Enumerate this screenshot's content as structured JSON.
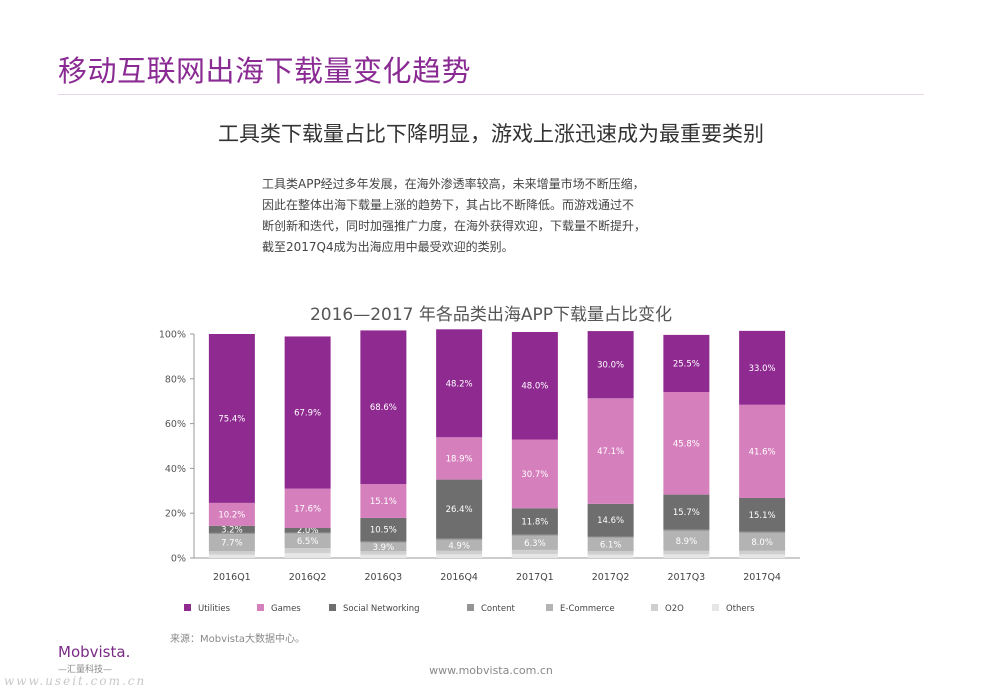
{
  "page": {
    "title": "移动互联网出海下载量变化趋势",
    "subtitle": "工具类下载量占比下降明显，游戏上涨迅速成为最重要类别",
    "description_lines": [
      "工具类APP经过多年发展，在海外渗透率较高，未来增量市场不断压缩，",
      "因此在整体出海下载量上涨的趋势下，其占比不断降低。而游戏通过不",
      "断创新和迭代，同时加强推广力度，在海外获得欢迎，下载量不断提升，",
      "截至2017Q4成为出海应用中最受欢迎的类别。"
    ],
    "source": "来源：Mobvista大数据中心。",
    "footer_url": "www.mobvista.com.cn",
    "logo": "Mobvista.",
    "logo_sub": "—汇量科技—",
    "watermark": "www.useit.com.cn"
  },
  "chart_data": {
    "type": "bar",
    "stacked": true,
    "title": "2016—2017 年各品类出海APP下载量占比变化",
    "categories": [
      "2016Q1",
      "2016Q2",
      "2016Q3",
      "2016Q4",
      "2017Q1",
      "2017Q2",
      "2017Q3",
      "2017Q4"
    ],
    "ylim": [
      0,
      100
    ],
    "yticks": [
      "0%",
      "20%",
      "40%",
      "60%",
      "80%",
      "100%"
    ],
    "legend_position": "bottom",
    "series": [
      {
        "name": "Others",
        "color": "#e6e6e6",
        "values": [
          1.5,
          2.2,
          1.5,
          1.6,
          1.8,
          1.5,
          1.6,
          1.6
        ]
      },
      {
        "name": "O2O",
        "color": "#cfcfcf",
        "values": [
          1.5,
          2.2,
          1.5,
          1.6,
          1.8,
          1.5,
          1.6,
          1.6
        ]
      },
      {
        "name": "E-Commerce",
        "color": "#b3b3b3",
        "values": [
          7.7,
          6.5,
          3.9,
          4.9,
          6.3,
          6.1,
          8.9,
          8.0
        ]
      },
      {
        "name": "Content",
        "color": "#949494",
        "values": [
          0.5,
          0.5,
          0.5,
          0.5,
          0.5,
          0.5,
          0.5,
          0.5
        ]
      },
      {
        "name": "Social Networking",
        "color": "#6e6e6e",
        "values": [
          3.2,
          2.0,
          10.5,
          26.4,
          11.8,
          14.6,
          15.7,
          15.1
        ]
      },
      {
        "name": "Games",
        "color": "#d67fbd",
        "values": [
          10.2,
          17.6,
          15.1,
          18.9,
          30.7,
          47.1,
          45.8,
          41.6
        ]
      },
      {
        "name": "Utilities",
        "color": "#8f2a91",
        "values": [
          75.4,
          67.9,
          68.6,
          48.2,
          48.0,
          30.0,
          25.5,
          33.0
        ]
      }
    ],
    "data_labels": [
      {
        "series": "Utilities",
        "values": [
          "75.4%",
          "67.9%",
          "68.6%",
          "48.2%",
          "48.0%",
          "30.0%",
          "25.5%",
          "33.0%"
        ]
      },
      {
        "series": "Games",
        "values": [
          "10.2%",
          "17.6%",
          "15.1%",
          "18.9%",
          "30.7%",
          "47.1%",
          "45.8%",
          "41.6%"
        ]
      },
      {
        "series": "Social Networking",
        "values": [
          "3.2%",
          "2.0%",
          "10.5%",
          "26.4%",
          "11.8%",
          "14.6%",
          "15.7%",
          "15.1%"
        ]
      },
      {
        "series": "E-Commerce",
        "values": [
          "7.7%",
          "6.5%",
          "3.9%",
          "4.9%",
          "6.3%",
          "6.1%",
          "8.9%",
          "8.0%"
        ]
      }
    ],
    "legend_order": [
      "Utilities",
      "Games",
      "Social Networking",
      "Content",
      "E-Commerce",
      "O2O",
      "Others"
    ]
  }
}
